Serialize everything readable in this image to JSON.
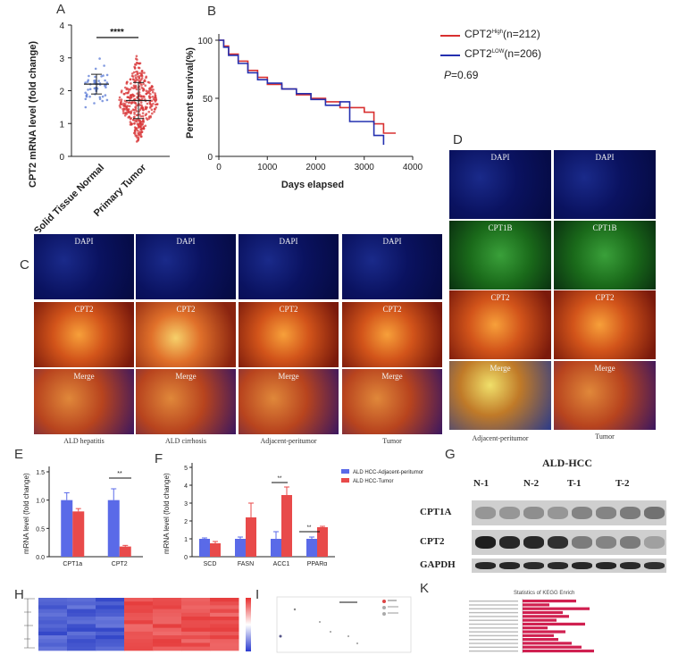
{
  "panels": {
    "a": "A",
    "b": "B",
    "c": "C",
    "d": "D",
    "e": "E",
    "f": "F",
    "g": "G",
    "h": "H",
    "i": "I",
    "k": "K"
  },
  "panelA": {
    "ylabel": "CPT2 mRNA level (fold change)",
    "yticks": [
      "0",
      "1",
      "2",
      "3",
      "4"
    ],
    "xcats": [
      "Solid Tissue Normal",
      "Primary Tumor"
    ],
    "sig": "****"
  },
  "panelB": {
    "ylabel": "Percent survival(%)",
    "xlabel": "Days elapsed",
    "yticks": [
      "0",
      "50",
      "100"
    ],
    "xticks": [
      "0",
      "1000",
      "2000",
      "3000",
      "4000"
    ],
    "legend_high_main": "CPT2",
    "legend_high_sup": "High",
    "legend_high_n": "(n=212)",
    "legend_low_main": "CPT2",
    "legend_low_sup": "LOW",
    "legend_low_n": "(n=206)",
    "p_letter": "P",
    "p_value": "=0.69",
    "high_color": "#d83030",
    "low_color": "#2430b0"
  },
  "panelC": {
    "row_labels": [
      "DAPI",
      "CPT2",
      "Merge"
    ],
    "captions": [
      "ALD hepatitis",
      "ALD cirrhosis",
      "Adjacent-peritumor",
      "Tumor"
    ]
  },
  "panelD": {
    "row_labels": [
      "DAPI",
      "CPT1B",
      "CPT2",
      "Merge"
    ],
    "captions": [
      "Adjacent-peritumor",
      "Tumor"
    ]
  },
  "panelE": {
    "ylabel": "mRNA level (fold change)",
    "yticks": [
      "0.0",
      "0.5",
      "1.0",
      "1.5"
    ],
    "sig": "**"
  },
  "panelF": {
    "ylabel": "mRNA level (fold change)",
    "yticks": [
      "0",
      "1",
      "2",
      "3",
      "4",
      "5"
    ],
    "legend": [
      "ALD HCC-Adjacent-peritumor",
      "ALD HCC-Tumor"
    ],
    "sig": "**"
  },
  "panelG": {
    "title": "ALD-HCC",
    "lanes": [
      "N-1",
      "N-2",
      "T-1",
      "T-2"
    ],
    "rows": [
      "CPT1A",
      "CPT2",
      "GAPDH"
    ]
  },
  "panelK": {
    "title": "Statistics of KEGG Enrich"
  },
  "chart_data": [
    {
      "id": "A",
      "type": "scatter",
      "title": "",
      "ylabel": "CPT2 mRNA level (fold change)",
      "ylim": [
        0,
        4
      ],
      "categories": [
        "Solid Tissue Normal",
        "Primary Tumor"
      ],
      "series": [
        {
          "name": "Solid Tissue Normal",
          "mean": 2.2,
          "sd": 0.3,
          "n": 50
        },
        {
          "name": "Primary Tumor",
          "mean": 1.7,
          "sd": 0.55,
          "n": 370
        }
      ]
    },
    {
      "id": "B",
      "type": "line",
      "title": "",
      "xlabel": "Days elapsed",
      "ylabel": "Percent survival(%)",
      "xlim": [
        0,
        4000
      ],
      "ylim": [
        0,
        100
      ],
      "series": [
        {
          "name": "CPT2 High (n=212)",
          "color": "#d83030",
          "x": [
            0,
            100,
            200,
            400,
            600,
            800,
            1000,
            1300,
            1600,
            1900,
            2200,
            2500,
            3000,
            3200,
            3400,
            3650
          ],
          "y": [
            100,
            95,
            88,
            82,
            74,
            68,
            62,
            58,
            53,
            50,
            47,
            42,
            38,
            28,
            20,
            20
          ]
        },
        {
          "name": "CPT2 Low (n=206)",
          "color": "#2430b0",
          "x": [
            0,
            100,
            200,
            400,
            600,
            800,
            1000,
            1300,
            1600,
            1900,
            2200,
            2500,
            2700,
            3100,
            3200,
            3400
          ],
          "y": [
            100,
            94,
            87,
            80,
            72,
            66,
            63,
            58,
            54,
            49,
            44,
            47,
            30,
            30,
            18,
            10
          ]
        }
      ],
      "annotation": "P=0.69"
    },
    {
      "id": "E",
      "type": "bar",
      "title": "",
      "ylabel": "mRNA level (fold change)",
      "ylim": [
        0,
        1.5
      ],
      "categories": [
        "CPT1a",
        "CPT2"
      ],
      "series": [
        {
          "name": "ALD HCC-Adjacent-peritumor",
          "color": "#5a6ae8",
          "values": [
            1.0,
            1.0
          ],
          "err": [
            0.13,
            0.2
          ]
        },
        {
          "name": "ALD HCC-Tumor",
          "color": "#e84a4a",
          "values": [
            0.8,
            0.18
          ],
          "err": [
            0.05,
            0.02
          ]
        }
      ]
    },
    {
      "id": "F",
      "type": "bar",
      "title": "",
      "ylabel": "mRNA level (fold change)",
      "ylim": [
        0,
        5
      ],
      "categories": [
        "SCD",
        "FASN",
        "ACC1",
        "PPARα"
      ],
      "series": [
        {
          "name": "ALD HCC-Adjacent-peritumor",
          "color": "#5a6ae8",
          "values": [
            1.0,
            1.0,
            1.0,
            1.0
          ],
          "err": [
            0.05,
            0.1,
            0.4,
            0.1
          ]
        },
        {
          "name": "ALD HCC-Tumor",
          "color": "#e84a4a",
          "values": [
            0.75,
            2.2,
            3.45,
            1.65
          ],
          "err": [
            0.1,
            0.8,
            0.45,
            0.05
          ]
        }
      ]
    }
  ]
}
